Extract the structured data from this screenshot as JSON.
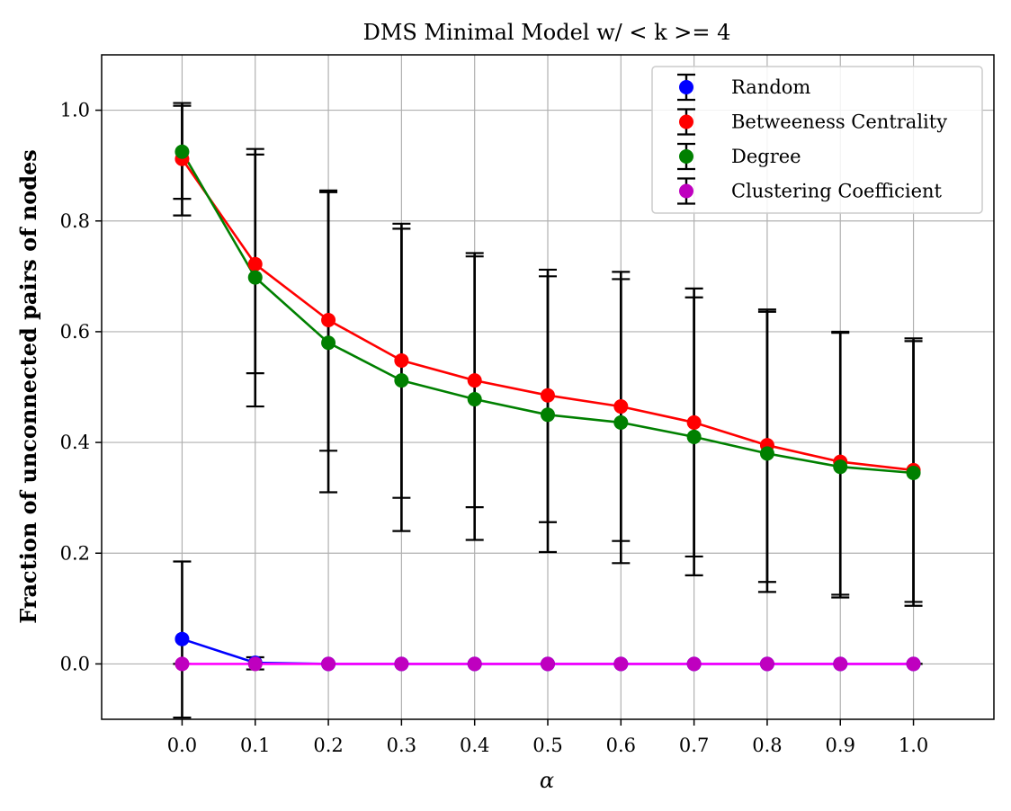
{
  "chart_data": {
    "type": "line",
    "title": "DMS Minimal Model w/ < k >= 4",
    "xlabel": "α",
    "ylabel": "Fraction of unconnected pairs of nodes",
    "x": [
      0.0,
      0.1,
      0.2,
      0.3,
      0.4,
      0.5,
      0.6,
      0.7,
      0.8,
      0.9,
      1.0
    ],
    "xtick_labels": [
      "0.0",
      "0.1",
      "0.2",
      "0.3",
      "0.4",
      "0.5",
      "0.6",
      "0.7",
      "0.8",
      "0.9",
      "1.0"
    ],
    "ytick_values": [
      0.0,
      0.2,
      0.4,
      0.6,
      0.8,
      1.0
    ],
    "ytick_labels": [
      "0.0",
      "0.2",
      "0.4",
      "0.6",
      "0.8",
      "1.0"
    ],
    "xlim": [
      -0.11,
      1.11
    ],
    "ylim": [
      -0.1,
      1.1
    ],
    "grid": true,
    "legend_position": "top-right",
    "error_bar_color": "#000000",
    "series": [
      {
        "name": "Random",
        "color": "#0000ff",
        "values": [
          0.045,
          0.002,
          0.0,
          0.0,
          0.0,
          0.0,
          0.0,
          0.0,
          0.0,
          0.0,
          0.0
        ],
        "err_low": [
          -0.097,
          -0.01,
          0.0,
          0.0,
          0.0,
          0.0,
          0.0,
          0.0,
          0.0,
          0.0,
          0.0
        ],
        "err_high": [
          0.185,
          0.012,
          0.0,
          0.0,
          0.0,
          0.0,
          0.0,
          0.0,
          0.0,
          0.0,
          0.0
        ]
      },
      {
        "name": "Betweeness Centrality",
        "color": "#ff0000",
        "values": [
          0.912,
          0.722,
          0.621,
          0.548,
          0.512,
          0.485,
          0.465,
          0.436,
          0.395,
          0.365,
          0.35
        ],
        "err_low": [
          0.81,
          0.465,
          0.31,
          0.24,
          0.224,
          0.202,
          0.182,
          0.16,
          0.13,
          0.12,
          0.105
        ],
        "err_high": [
          1.013,
          0.93,
          0.855,
          0.795,
          0.742,
          0.712,
          0.708,
          0.678,
          0.64,
          0.6,
          0.588
        ]
      },
      {
        "name": "Degree",
        "color": "#008000",
        "values": [
          0.925,
          0.698,
          0.58,
          0.512,
          0.478,
          0.45,
          0.436,
          0.41,
          0.38,
          0.356,
          0.345
        ],
        "err_low": [
          0.84,
          0.525,
          0.385,
          0.3,
          0.283,
          0.256,
          0.222,
          0.194,
          0.148,
          0.125,
          0.112
        ],
        "err_high": [
          1.008,
          0.92,
          0.852,
          0.786,
          0.736,
          0.7,
          0.695,
          0.662,
          0.636,
          0.598,
          0.583
        ]
      },
      {
        "name": "Clustering Coefficient",
        "color": "#ff00ff",
        "marker_color": "#bf00bf",
        "values": [
          0.0,
          0.0,
          0.0,
          0.0,
          0.0,
          0.0,
          0.0,
          0.0,
          0.0,
          0.0,
          0.0
        ],
        "err_low": [
          0.0,
          0.0,
          0.0,
          0.0,
          0.0,
          0.0,
          0.0,
          0.0,
          0.0,
          0.0,
          0.0
        ],
        "err_high": [
          0.0,
          0.0,
          0.0,
          0.0,
          0.0,
          0.0,
          0.0,
          0.0,
          0.0,
          0.0,
          0.0
        ]
      }
    ]
  }
}
